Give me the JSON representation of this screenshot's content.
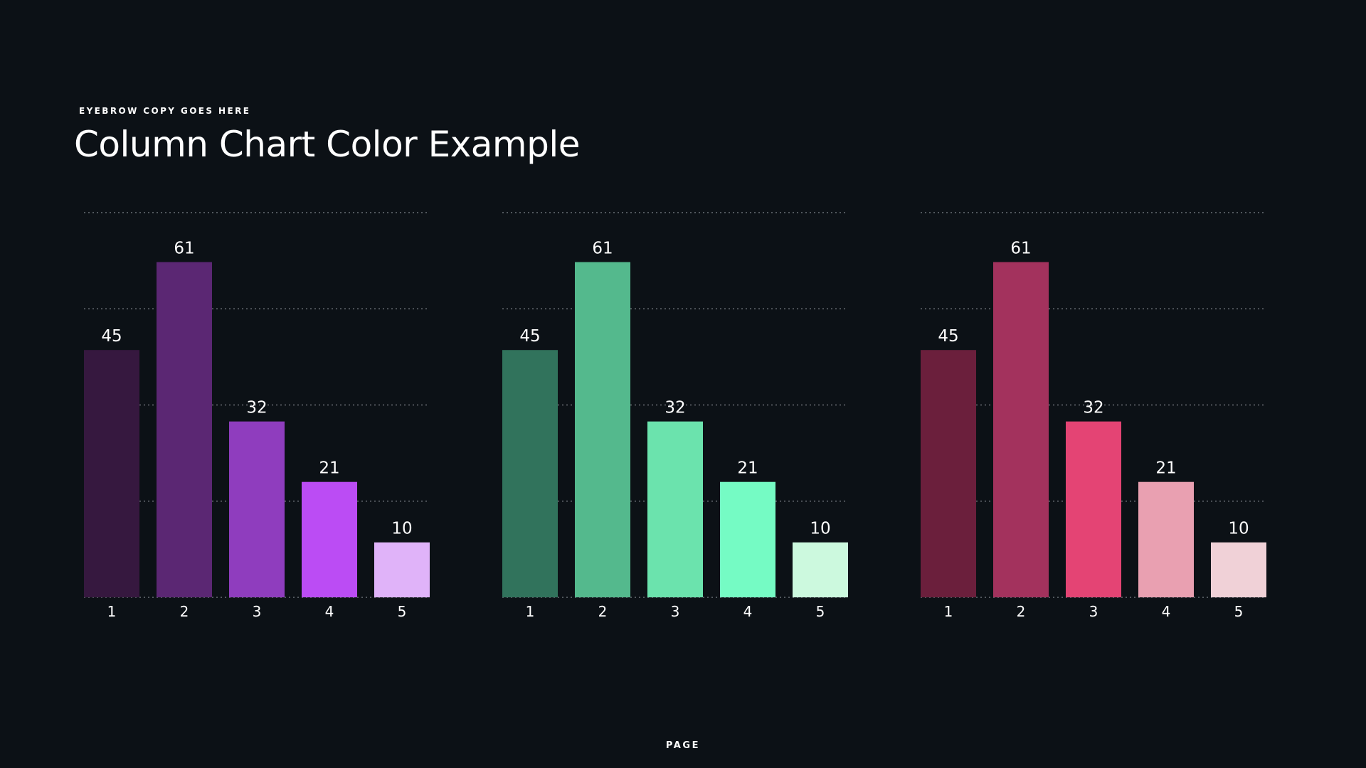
{
  "header": {
    "eyebrow": "EYEBROW COPY GOES HERE",
    "title": "Column Chart Color Example"
  },
  "footer": {
    "page_label": "PAGE"
  },
  "chart_data": [
    {
      "type": "bar",
      "categories": [
        "1",
        "2",
        "3",
        "4",
        "5"
      ],
      "values": [
        45,
        61,
        32,
        21,
        10
      ],
      "ylim": [
        0,
        70
      ],
      "grid": true,
      "colors": [
        "#36183f",
        "#5b2773",
        "#8f3dbe",
        "#bb4cf4",
        "#e0b3f9"
      ]
    },
    {
      "type": "bar",
      "categories": [
        "1",
        "2",
        "3",
        "4",
        "5"
      ],
      "values": [
        45,
        61,
        32,
        21,
        10
      ],
      "ylim": [
        0,
        70
      ],
      "grid": true,
      "colors": [
        "#31735c",
        "#54b98d",
        "#6be3ad",
        "#75fbc4",
        "#ccf9de"
      ]
    },
    {
      "type": "bar",
      "categories": [
        "1",
        "2",
        "3",
        "4",
        "5"
      ],
      "values": [
        45,
        61,
        32,
        21,
        10
      ],
      "ylim": [
        0,
        70
      ],
      "grid": true,
      "colors": [
        "#6b1f3c",
        "#a3325d",
        "#e44474",
        "#e9a0b1",
        "#f0d1d7"
      ]
    }
  ],
  "theme": {
    "background": "#0c1116",
    "gridline": "#8a9096",
    "text": "#ffffff"
  }
}
